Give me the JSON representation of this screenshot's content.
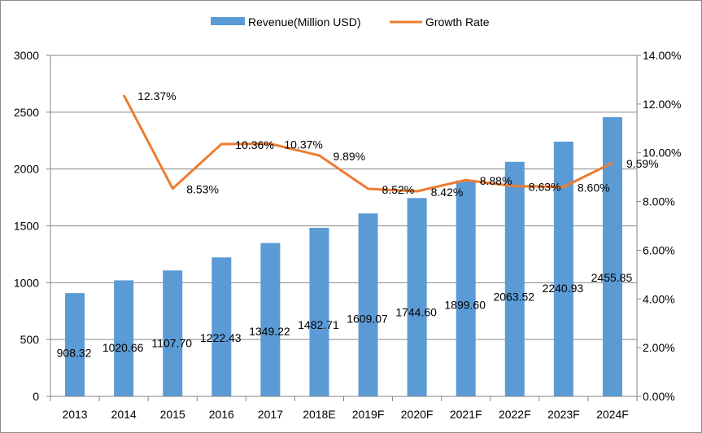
{
  "chart_data": {
    "type": "bar",
    "title": "",
    "xlabel": "",
    "ylabel": "",
    "categories": [
      "2013",
      "2014",
      "2015",
      "2016",
      "2017",
      "2018E",
      "2019F",
      "2020F",
      "2021F",
      "2022F",
      "2023F",
      "2024F"
    ],
    "series": [
      {
        "name": "Revenue(Million USD)",
        "type": "bar",
        "axis": "left",
        "color": "#5b9bd5",
        "values": [
          908.32,
          1020.66,
          1107.7,
          1222.43,
          1349.22,
          1482.71,
          1609.07,
          1744.6,
          1899.6,
          2063.52,
          2240.93,
          2455.85
        ],
        "labels": [
          "908.32",
          "1020.66",
          "1107.70",
          "1222.43",
          "1349.22",
          "1482.71",
          "1609.07",
          "1744.60",
          "1899.60",
          "2063.52",
          "2240.93",
          "2455.85"
        ]
      },
      {
        "name": "Growth Rate",
        "type": "line",
        "axis": "right",
        "color": "#ed7d31",
        "values": [
          null,
          12.37,
          8.53,
          10.36,
          10.37,
          9.89,
          8.52,
          8.42,
          8.88,
          8.63,
          8.6,
          9.59
        ],
        "labels": [
          null,
          "12.37%",
          "8.53%",
          "10.36%",
          "10.37%",
          "9.89%",
          "8.52%",
          "8.42%",
          "8.88%",
          "8.63%",
          "8.60%",
          "9.59%"
        ]
      }
    ],
    "ylim": [
      0,
      3000
    ],
    "yticks": [
      0,
      500,
      1000,
      1500,
      2000,
      2500,
      3000
    ],
    "ytick_labels": [
      "0",
      "500",
      "1000",
      "1500",
      "2000",
      "2500",
      "3000"
    ],
    "y2lim": [
      0,
      14
    ],
    "y2ticks": [
      0,
      2,
      4,
      6,
      8,
      10,
      12,
      14
    ],
    "y2tick_labels": [
      "0.00%",
      "2.00%",
      "4.00%",
      "6.00%",
      "8.00%",
      "10.00%",
      "12.00%",
      "14.00%"
    ],
    "grid": true,
    "legend": {
      "placement": "top-center",
      "entries": [
        "Revenue(Million USD)",
        "Growth Rate"
      ]
    }
  }
}
